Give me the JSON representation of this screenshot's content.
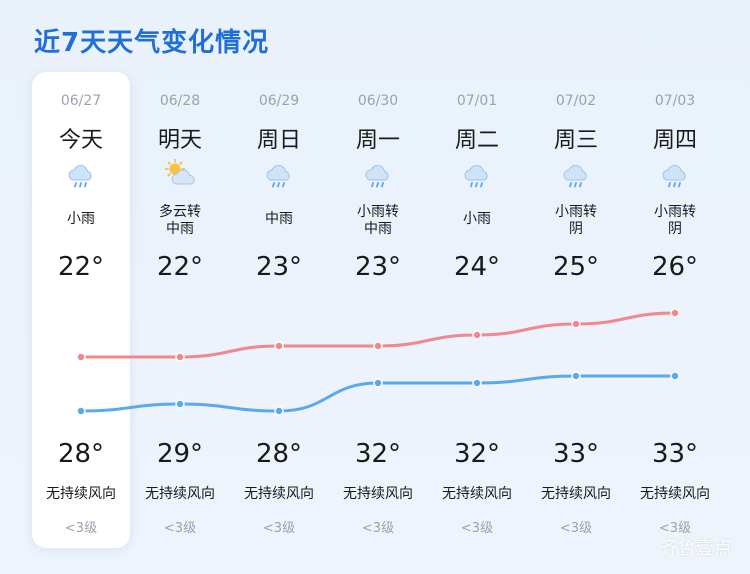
{
  "title": "近7天天气变化情况",
  "watermark": "齐鲁壹点",
  "colors": {
    "accent": "#1f6fd6",
    "low_line": "#f0888d",
    "high_line": "#5aa8ee"
  },
  "days": [
    {
      "date": "06/27",
      "day": "今天",
      "icon": "rain-cloud-icon",
      "condition": "小雨",
      "low": "22°",
      "high": "28°",
      "wind": "无持续风向",
      "level": "<3级"
    },
    {
      "date": "06/28",
      "day": "明天",
      "icon": "partly-cloudy-icon",
      "condition": "多云转\n中雨",
      "low": "22°",
      "high": "29°",
      "wind": "无持续风向",
      "level": "<3级"
    },
    {
      "date": "06/29",
      "day": "周日",
      "icon": "rain-cloud-icon",
      "condition": "中雨",
      "low": "23°",
      "high": "28°",
      "wind": "无持续风向",
      "level": "<3级"
    },
    {
      "date": "06/30",
      "day": "周一",
      "icon": "rain-cloud-icon",
      "condition": "小雨转\n中雨",
      "low": "23°",
      "high": "32°",
      "wind": "无持续风向",
      "level": "<3级"
    },
    {
      "date": "07/01",
      "day": "周二",
      "icon": "rain-cloud-icon",
      "condition": "小雨",
      "low": "24°",
      "high": "32°",
      "wind": "无持续风向",
      "level": "<3级"
    },
    {
      "date": "07/02",
      "day": "周三",
      "icon": "rain-cloud-icon",
      "condition": "小雨转\n阴",
      "low": "25°",
      "high": "33°",
      "wind": "无持续风向",
      "level": "<3级"
    },
    {
      "date": "07/03",
      "day": "周四",
      "icon": "rain-cloud-icon",
      "condition": "小雨转\n阴",
      "low": "26°",
      "high": "33°",
      "wind": "无持续风向",
      "level": "<3级"
    }
  ],
  "chart_data": {
    "type": "line",
    "x": [
      "06/27",
      "06/28",
      "06/29",
      "06/30",
      "07/01",
      "07/02",
      "07/03"
    ],
    "series": [
      {
        "values": [
          22,
          22,
          23,
          23,
          24,
          25,
          26
        ]
      },
      {
        "values": [
          28,
          29,
          28,
          32,
          32,
          33,
          33
        ]
      }
    ]
  }
}
